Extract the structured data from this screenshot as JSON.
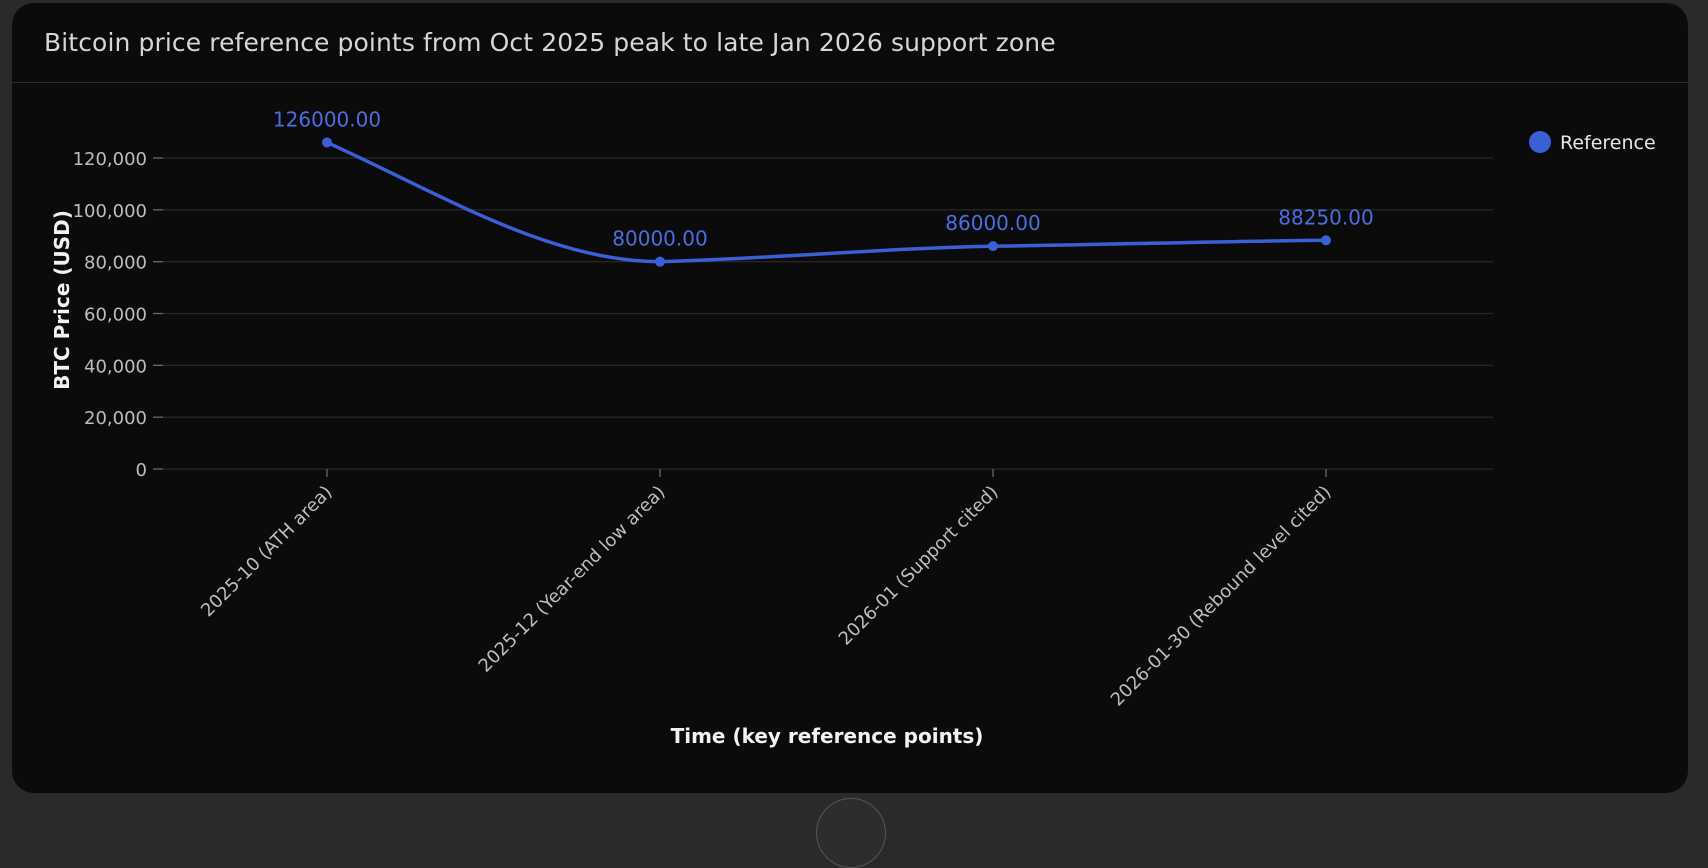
{
  "chart_data": {
    "type": "line",
    "title": "Bitcoin price reference points from Oct 2025 peak to late Jan 2026 support zone",
    "xlabel": "Time (key reference points)",
    "ylabel": "BTC Price (USD)",
    "categories": [
      "2025-10 (ATH area)",
      "2025-12 (Year-end low area)",
      "2026-01 (Support cited)",
      "2026-01-30 (Rebound level cited)"
    ],
    "series": [
      {
        "name": "Reference",
        "values": [
          126000,
          80000,
          86000,
          88250
        ],
        "data_labels": [
          "126000.00",
          "80000.00",
          "86000.00",
          "88250.00"
        ]
      }
    ],
    "ylim": [
      0,
      130000
    ],
    "yticks": [
      0,
      20000,
      40000,
      60000,
      80000,
      100000,
      120000
    ],
    "ytick_labels": [
      "0",
      "20,000",
      "40,000",
      "60,000",
      "80,000",
      "100,000",
      "120,000"
    ],
    "grid": true,
    "legend": "top-right",
    "smooth": true,
    "colors": {
      "series": "#3b5fd6",
      "label": "#4a6ee0",
      "grid": "#262626",
      "axis_text": "#bdbdbd",
      "title_text": "#f2f2f2"
    }
  }
}
